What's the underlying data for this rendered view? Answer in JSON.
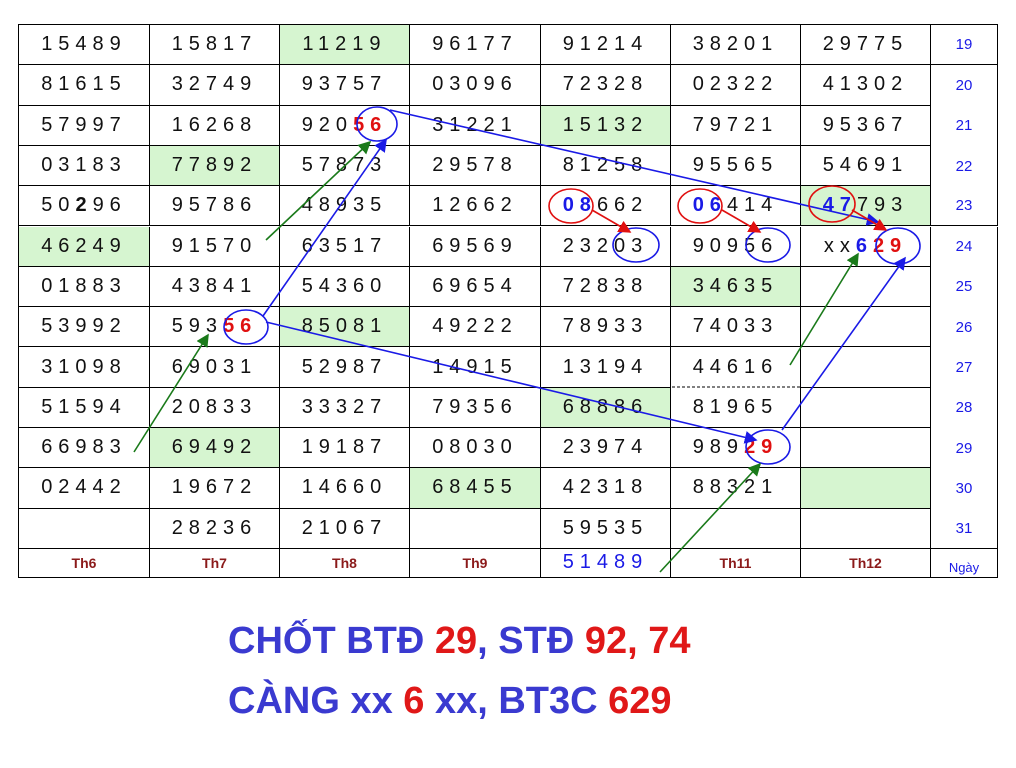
{
  "table": {
    "header": [
      "Th6",
      "Th7",
      "Th8",
      "Th9",
      "51489",
      "Th11",
      "Th12",
      "Ngày"
    ],
    "rows": [
      [
        "15489",
        "15817",
        "11219",
        "96177",
        "91214",
        "38201",
        "29775",
        "19"
      ],
      [
        "81615",
        "32749",
        "93757",
        "03096",
        "72328",
        "02322",
        "41302",
        "20"
      ],
      [
        "57997",
        "16268",
        "92056",
        "31221",
        "15132",
        "79721",
        "95367",
        "21"
      ],
      [
        "03183",
        "77892",
        "57873",
        "29578",
        "81258",
        "95565",
        "54691",
        "22"
      ],
      [
        "50296",
        "95786",
        "48935",
        "12662",
        "08662",
        "06414",
        "47793",
        "23"
      ],
      [
        "46249",
        "91570",
        "63517",
        "69569",
        "23203",
        "90956",
        "xx629",
        "24"
      ],
      [
        "01883",
        "43841",
        "54360",
        "69654",
        "72838",
        "34635",
        null,
        "25"
      ],
      [
        "53992",
        "59356",
        "85081",
        "49222",
        "78933",
        "74033",
        null,
        "26"
      ],
      [
        "31098",
        "69031",
        "52987",
        "14915",
        "13194",
        "44616",
        null,
        "27"
      ],
      [
        "51594",
        "20833",
        "33327",
        "79356",
        "68886",
        "81965",
        null,
        "28"
      ],
      [
        "66983",
        "69492",
        "19187",
        "08030",
        "23974",
        "98929",
        null,
        "29"
      ],
      [
        "02442",
        "19672",
        "14660",
        "68455",
        "42318",
        "88321",
        null,
        "30"
      ],
      [
        null,
        "28236",
        "21067",
        null,
        "59535",
        null,
        null,
        "31"
      ]
    ]
  },
  "footer": {
    "lines": [
      [
        "CHỐT BTĐ ",
        "29",
        ", STĐ ",
        "92, 74"
      ],
      [
        "CÀNG xx ",
        "6",
        " xx, BT3C ",
        "629"
      ]
    ]
  }
}
